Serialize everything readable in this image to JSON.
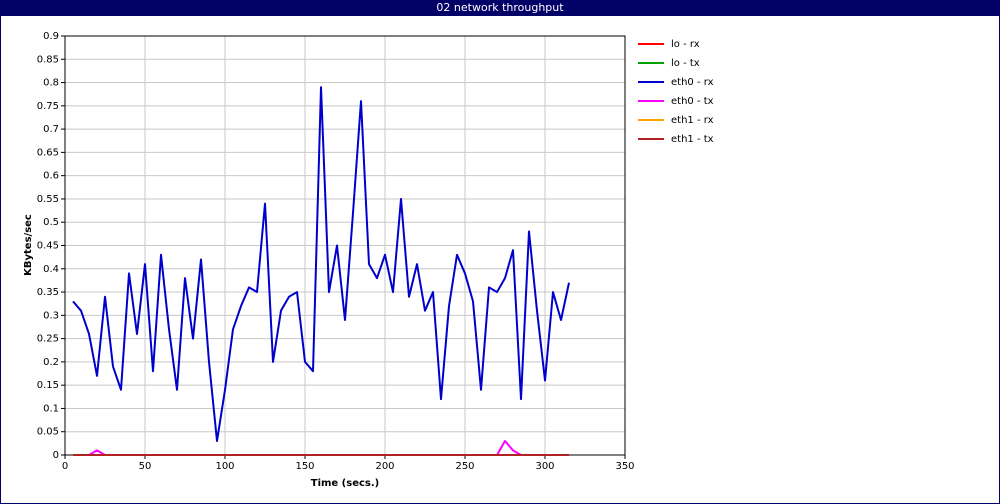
{
  "chart_data": {
    "type": "line",
    "title": "02 network throughput",
    "x_label": "Time (secs.)",
    "y_label": "KBytes/sec",
    "x": [
      5,
      10,
      15,
      20,
      25,
      30,
      35,
      40,
      45,
      50,
      55,
      60,
      65,
      70,
      75,
      80,
      85,
      90,
      95,
      100,
      105,
      110,
      115,
      120,
      125,
      130,
      135,
      140,
      145,
      150,
      155,
      160,
      165,
      170,
      175,
      180,
      185,
      190,
      195,
      200,
      205,
      210,
      215,
      220,
      225,
      230,
      235,
      240,
      245,
      250,
      255,
      260,
      265,
      270,
      275,
      280,
      285,
      290,
      295,
      300,
      305,
      310,
      315
    ],
    "xlim": [
      0,
      350
    ],
    "xticks": [
      0,
      50,
      100,
      150,
      200,
      250,
      300,
      350
    ],
    "ylim": [
      0,
      0.9
    ],
    "yticks": [
      0,
      0.05,
      0.1,
      0.15,
      0.2,
      0.25,
      0.3,
      0.35,
      0.4,
      0.45,
      0.5,
      0.55,
      0.6,
      0.65,
      0.7,
      0.75,
      0.8,
      0.85,
      0.9
    ],
    "grid": true,
    "legend": "right",
    "series": [
      {
        "name": "lo - rx",
        "color": "#ff0000",
        "values": [
          0,
          0,
          0,
          0,
          0,
          0,
          0,
          0,
          0,
          0,
          0,
          0,
          0,
          0,
          0,
          0,
          0,
          0,
          0,
          0,
          0,
          0,
          0,
          0,
          0,
          0,
          0,
          0,
          0,
          0,
          0,
          0,
          0,
          0,
          0,
          0,
          0,
          0,
          0,
          0,
          0,
          0,
          0,
          0,
          0,
          0,
          0,
          0,
          0,
          0,
          0,
          0,
          0,
          0,
          0,
          0,
          0,
          0,
          0,
          0,
          0,
          0,
          0
        ]
      },
      {
        "name": "lo - tx",
        "color": "#00a000",
        "values": [
          0,
          0,
          0,
          0,
          0,
          0,
          0,
          0,
          0,
          0,
          0,
          0,
          0,
          0,
          0,
          0,
          0,
          0,
          0,
          0,
          0,
          0,
          0,
          0,
          0,
          0,
          0,
          0,
          0,
          0,
          0,
          0,
          0,
          0,
          0,
          0,
          0,
          0,
          0,
          0,
          0,
          0,
          0,
          0,
          0,
          0,
          0,
          0,
          0,
          0,
          0,
          0,
          0,
          0,
          0,
          0,
          0,
          0,
          0,
          0,
          0,
          0,
          0
        ]
      },
      {
        "name": "eth0 - rx",
        "color": "#0000cc",
        "values": [
          0.33,
          0.31,
          0.26,
          0.17,
          0.34,
          0.19,
          0.14,
          0.39,
          0.26,
          0.41,
          0.18,
          0.43,
          0.27,
          0.14,
          0.38,
          0.25,
          0.42,
          0.2,
          0.03,
          0.14,
          0.27,
          0.32,
          0.36,
          0.35,
          0.54,
          0.2,
          0.31,
          0.34,
          0.35,
          0.2,
          0.18,
          0.79,
          0.35,
          0.45,
          0.29,
          0.52,
          0.76,
          0.41,
          0.38,
          0.43,
          0.35,
          0.55,
          0.34,
          0.41,
          0.31,
          0.35,
          0.12,
          0.32,
          0.43,
          0.39,
          0.33,
          0.14,
          0.36,
          0.35,
          0.38,
          0.44,
          0.12,
          0.48,
          0.31,
          0.16,
          0.35,
          0.29,
          0.37
        ]
      },
      {
        "name": "eth0 - tx",
        "color": "#ff00ff",
        "values": [
          0,
          0,
          0,
          0.01,
          0,
          0,
          0,
          0,
          0,
          0,
          0,
          0,
          0,
          0,
          0,
          0,
          0,
          0,
          0,
          0,
          0,
          0,
          0,
          0,
          0,
          0,
          0,
          0,
          0,
          0,
          0,
          0,
          0,
          0,
          0,
          0,
          0,
          0,
          0,
          0,
          0,
          0,
          0,
          0,
          0,
          0,
          0,
          0,
          0,
          0,
          0,
          0,
          0,
          0,
          0.03,
          0.01,
          0,
          0,
          0,
          0,
          0,
          0,
          0
        ]
      },
      {
        "name": "eth1 - rx",
        "color": "#ffa000",
        "values": [
          0,
          0,
          0,
          0,
          0,
          0,
          0,
          0,
          0,
          0,
          0,
          0,
          0,
          0,
          0,
          0,
          0,
          0,
          0,
          0,
          0,
          0,
          0,
          0,
          0,
          0,
          0,
          0,
          0,
          0,
          0,
          0,
          0,
          0,
          0,
          0,
          0,
          0,
          0,
          0,
          0,
          0,
          0,
          0,
          0,
          0,
          0,
          0,
          0,
          0,
          0,
          0,
          0,
          0,
          0,
          0,
          0,
          0,
          0,
          0,
          0,
          0,
          0
        ]
      },
      {
        "name": "eth1 - tx",
        "color": "#b22222",
        "values": [
          0,
          0,
          0,
          0,
          0,
          0,
          0,
          0,
          0,
          0,
          0,
          0,
          0,
          0,
          0,
          0,
          0,
          0,
          0,
          0,
          0,
          0,
          0,
          0,
          0,
          0,
          0,
          0,
          0,
          0,
          0,
          0,
          0,
          0,
          0,
          0,
          0,
          0,
          0,
          0,
          0,
          0,
          0,
          0,
          0,
          0,
          0,
          0,
          0,
          0,
          0,
          0,
          0,
          0,
          0,
          0,
          0,
          0,
          0,
          0,
          0,
          0,
          0
        ]
      }
    ]
  }
}
